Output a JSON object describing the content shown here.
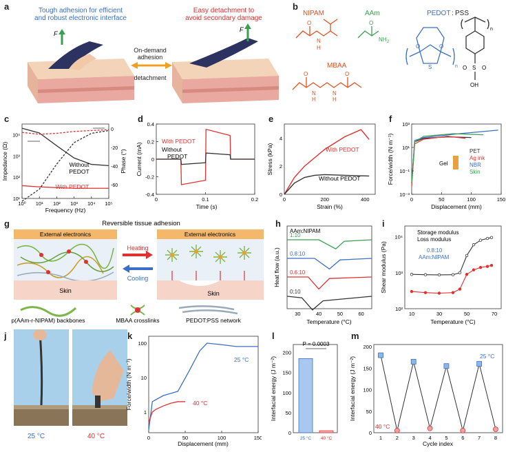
{
  "panels": {
    "a": {
      "letter": "a",
      "left_text": "Tough adhesion for efficient and robust electronic interface",
      "left_text_line1": "Tough adhesion for efficient",
      "left_text_line2": "and robust electronic interface",
      "right_text_line1": "Easy detachment to",
      "right_text_line2": "avoid secondary damage",
      "center_top_line1": "On-demand",
      "center_top_line2": "adhesion",
      "center_bottom": "detachment",
      "force_label": "F"
    },
    "b": {
      "letter": "b",
      "nipam": "NIPAM",
      "aam": "AAm",
      "pedot": "PEDOT",
      "colon": ":",
      "pss": "PSS",
      "mbaa": "MBAA",
      "atoms": {
        "N": "N",
        "H": "H",
        "O": "O",
        "S": "S",
        "NH2": "NH",
        "sub2": "2",
        "OH": "OH",
        "n": "n"
      }
    },
    "c": {
      "letter": "c",
      "ylabel": "Impedance (Ω)",
      "y2label": "Phase (°)",
      "xlabel": "Frequency (Hz)",
      "without": "Without",
      "pedot": "PEDOT",
      "with": "With PEDOT",
      "yticks": [
        "10⁴",
        "10³",
        "10²",
        "10¹"
      ],
      "y2ticks": [
        "0",
        "-20",
        "-40",
        "-60"
      ],
      "xticks": [
        "10⁰",
        "10¹",
        "10²",
        "10³",
        "10⁴",
        "10⁵"
      ]
    },
    "d": {
      "letter": "d",
      "ylabel": "Current (mA)",
      "xlabel": "Time (s)",
      "with": "With PEDOT",
      "without_line1": "Without",
      "without_line2": "PEDOT",
      "yticks": [
        "0.4",
        "0.2",
        "0",
        "-0.2",
        "-0.4"
      ],
      "xticks": [
        "0",
        "0.1",
        "0.2"
      ]
    },
    "e": {
      "letter": "e",
      "ylabel": "Stress (kPa)",
      "xlabel": "Strain (%)",
      "with": "With PEDOT",
      "without": "Without PEDOT",
      "yticks": [
        "4",
        "2",
        "0"
      ],
      "xticks": [
        "0",
        "200",
        "400"
      ]
    },
    "f": {
      "letter": "f",
      "ylabel": "Force/width (N m⁻¹)",
      "xlabel": "Displacement (mm)",
      "gel": "Gel",
      "legend": [
        "PET",
        "Ag ink",
        "NBR",
        "Skin"
      ],
      "yticks": [
        "10³",
        "10¹",
        "10⁻¹",
        "10⁻³"
      ],
      "xticks": [
        "0",
        "50",
        "100",
        "150"
      ]
    },
    "g": {
      "letter": "g",
      "title": "Reversible tissue adhesion",
      "ext1": "External electronics",
      "ext2": "External electronics",
      "heating": "Heating",
      "cooling": "Cooling",
      "skin1": "Skin",
      "skin2": "Skin",
      "legend_backbone": "p(AAm-r-NIPAM) backbones",
      "legend_mbaa": "MBAA crosslinks",
      "legend_pedot": "PEDOT:PSS network"
    },
    "h": {
      "letter": "h",
      "ylabel": "Heat flow (a.u.)",
      "xlabel": "Temperature (°C)",
      "header": "AAm:NIPAM",
      "ratios": [
        "1:10",
        "0.8:10",
        "0.6:10",
        "0:10"
      ],
      "xticks": [
        "30",
        "40",
        "50",
        "60"
      ]
    },
    "i": {
      "letter": "i",
      "ylabel": "Shear modulus (Pa)",
      "xlabel": "Temperature (°C)",
      "storage": "Storage modulus",
      "loss": "Loss modulus",
      "ratio": "0.8:10",
      "ratio_label": "AAm:NIPAM",
      "yticks": [
        "10⁴",
        "10³",
        "10²"
      ],
      "xticks": [
        "10",
        "30",
        "50",
        "70"
      ]
    },
    "j": {
      "letter": "j",
      "t1": "25 °C",
      "t2": "40 °C"
    },
    "k": {
      "letter": "k",
      "ylabel": "Force/width (N m⁻¹)",
      "xlabel": "Displacement (mm)",
      "t25": "25 °C",
      "t40": "40 °C",
      "yticks": [
        "100",
        "10",
        "1"
      ],
      "xticks": [
        "0",
        "50",
        "100",
        "150"
      ]
    },
    "l": {
      "letter": "l",
      "ylabel": "Interfacial energy (J m⁻²)",
      "pvalue": "P = 0.0003",
      "xticks": [
        "25 °C",
        "40 °C"
      ],
      "yticks": [
        "200",
        "150",
        "100",
        "50",
        "0"
      ]
    },
    "m": {
      "letter": "m",
      "ylabel": "Interfacial energy (J m⁻²)",
      "xlabel": "Cycle index",
      "t25": "25 °C",
      "t40": "40 °C",
      "yticks": [
        "200",
        "150",
        "100",
        "50",
        "0"
      ],
      "xticks": [
        "1",
        "2",
        "3",
        "4",
        "5",
        "6",
        "7",
        "8"
      ]
    }
  },
  "chart_data": [
    {
      "panel": "c",
      "type": "line",
      "title": "",
      "xlabel": "Frequency (Hz)",
      "ylabel": "Impedance (Ω)",
      "xscale": "log",
      "xlim": [
        1,
        100000
      ],
      "series": [
        {
          "name": "Impedance Without PEDOT",
          "color": "#333333",
          "x": [
            1,
            10,
            100,
            1000,
            10000,
            100000
          ],
          "values": [
            20000,
            12000,
            3000,
            800,
            400,
            350
          ]
        },
        {
          "name": "Impedance With PEDOT",
          "color": "#e03030",
          "x": [
            1,
            10,
            100,
            1000,
            10000,
            100000
          ],
          "values": [
            40,
            35,
            32,
            30,
            30,
            30
          ]
        },
        {
          "name": "Phase Without PEDOT",
          "color": "#333333",
          "dashed": true,
          "x": [
            1,
            10,
            100,
            1000,
            10000,
            100000
          ],
          "values": [
            -78,
            -65,
            -38,
            -15,
            -5,
            -2
          ]
        },
        {
          "name": "Phase With PEDOT",
          "color": "#e03030",
          "dashed": true,
          "x": [
            1,
            10,
            100,
            1000,
            10000,
            100000
          ],
          "values": [
            -4,
            -6,
            -5,
            -3,
            -2,
            -1
          ]
        }
      ]
    },
    {
      "panel": "d",
      "type": "line",
      "xlabel": "Time (s)",
      "ylabel": "Current (mA)",
      "xlim": [
        0,
        0.2
      ],
      "ylim": [
        -0.4,
        0.4
      ],
      "series": [
        {
          "name": "With PEDOT",
          "color": "#e03030",
          "x": [
            0,
            0.05,
            0.051,
            0.1,
            0.101,
            0.15,
            0.151,
            0.2
          ],
          "values": [
            0,
            0,
            -0.29,
            -0.24,
            0.34,
            0.27,
            0,
            0
          ]
        },
        {
          "name": "Without PEDOT",
          "color": "#333333",
          "x": [
            0,
            0.05,
            0.051,
            0.1,
            0.101,
            0.15,
            0.151,
            0.2
          ],
          "values": [
            0,
            0,
            -0.06,
            -0.04,
            0.07,
            0.05,
            0,
            0
          ]
        }
      ]
    },
    {
      "panel": "e",
      "type": "line",
      "xlabel": "Strain (%)",
      "ylabel": "Stress (kPa)",
      "xlim": [
        0,
        450
      ],
      "ylim": [
        0,
        5
      ],
      "series": [
        {
          "name": "With PEDOT",
          "color": "#e03030",
          "x": [
            0,
            50,
            100,
            200,
            300,
            380,
            420
          ],
          "values": [
            0,
            1.2,
            2.0,
            3.2,
            4.1,
            4.6,
            3.9
          ]
        },
        {
          "name": "Without PEDOT",
          "color": "#333333",
          "x": [
            0,
            50,
            100,
            150,
            200,
            300,
            420
          ],
          "values": [
            0,
            0.8,
            1.2,
            1.35,
            1.4,
            1.35,
            1.3
          ]
        }
      ]
    },
    {
      "panel": "f",
      "type": "line",
      "xlabel": "Displacement (mm)",
      "ylabel": "Force/width (N m⁻¹)",
      "yscale": "log",
      "xlim": [
        0,
        150
      ],
      "series": [
        {
          "name": "PET",
          "color": "#333333",
          "x": [
            0,
            5,
            20,
            60,
            100
          ],
          "values": [
            0.01,
            30,
            60,
            80,
            70
          ]
        },
        {
          "name": "Ag ink",
          "color": "#e03030",
          "x": [
            0,
            5,
            20,
            60,
            90
          ],
          "values": [
            0.005,
            20,
            50,
            90,
            60
          ]
        },
        {
          "name": "NBR",
          "color": "#3a6fc8",
          "x": [
            0,
            5,
            20,
            80,
            145
          ],
          "values": [
            0.01,
            40,
            70,
            150,
            300
          ]
        },
        {
          "name": "Skin",
          "color": "#3aa050",
          "x": [
            0,
            5,
            20,
            70,
            120
          ],
          "values": [
            0.01,
            30,
            90,
            150,
            120
          ]
        }
      ]
    },
    {
      "panel": "h",
      "type": "line",
      "xlabel": "Temperature (°C)",
      "ylabel": "Heat flow (a.u.)",
      "xlim": [
        25,
        65
      ],
      "series": [
        {
          "name": "1:10",
          "color": "#3aa050",
          "x": [
            25,
            40,
            48,
            52,
            65
          ],
          "values": [
            0,
            0,
            -0.6,
            -0.1,
            0
          ]
        },
        {
          "name": "0.8:10",
          "color": "#3a6fc8",
          "x": [
            25,
            38,
            45,
            50,
            65
          ],
          "values": [
            0,
            0,
            -0.7,
            -0.1,
            0
          ]
        },
        {
          "name": "0.6:10",
          "color": "#e03030",
          "x": [
            25,
            35,
            40,
            45,
            65
          ],
          "values": [
            0,
            0,
            -0.8,
            -0.1,
            0
          ]
        },
        {
          "name": "0:10",
          "color": "#333333",
          "x": [
            25,
            32,
            37,
            42,
            65
          ],
          "values": [
            0,
            -0.1,
            -0.9,
            -0.3,
            0
          ]
        }
      ]
    },
    {
      "panel": "i",
      "type": "line",
      "xlabel": "Temperature (°C)",
      "ylabel": "Shear modulus (Pa)",
      "yscale": "log",
      "xlim": [
        10,
        70
      ],
      "series": [
        {
          "name": "Storage modulus",
          "color": "#333333",
          "x": [
            10,
            20,
            30,
            40,
            45,
            50,
            55,
            60,
            65,
            68
          ],
          "values": [
            900,
            880,
            870,
            880,
            1000,
            3000,
            6000,
            8000,
            9000,
            9500
          ]
        },
        {
          "name": "Loss modulus",
          "color": "#e03030",
          "x": [
            10,
            20,
            30,
            40,
            45,
            50,
            55,
            60,
            65,
            68
          ],
          "values": [
            300,
            280,
            270,
            280,
            350,
            900,
            1200,
            1400,
            1500,
            1600
          ]
        }
      ]
    },
    {
      "panel": "k",
      "type": "line",
      "xlabel": "Displacement (mm)",
      "ylabel": "Force/width (N m⁻¹)",
      "yscale": "log",
      "xlim": [
        0,
        150
      ],
      "series": [
        {
          "name": "25 °C",
          "color": "#3a6fc8",
          "x": [
            0,
            5,
            20,
            40,
            55,
            70,
            80,
            100,
            120,
            150
          ],
          "values": [
            0.3,
            2,
            3,
            4,
            15,
            60,
            100,
            90,
            80,
            80
          ]
        },
        {
          "name": "40 °C",
          "color": "#e03030",
          "x": [
            0,
            5,
            10,
            20,
            30,
            40,
            50
          ],
          "values": [
            0.5,
            1,
            1.2,
            1.5,
            1.8,
            2,
            2
          ]
        }
      ]
    },
    {
      "panel": "l",
      "type": "bar",
      "ylabel": "Interfacial energy (J m⁻²)",
      "categories": [
        "25 °C",
        "40 °C"
      ],
      "values": [
        185,
        5
      ],
      "ylim": [
        0,
        220
      ],
      "annotation": "P = 0.0003"
    },
    {
      "panel": "m",
      "type": "line",
      "xlabel": "Cycle index",
      "ylabel": "Interfacial energy (J m⁻²)",
      "x": [
        1,
        2,
        3,
        4,
        5,
        6,
        7,
        8
      ],
      "values": [
        180,
        5,
        165,
        10,
        155,
        5,
        160,
        8
      ],
      "ylim": [
        0,
        200
      ]
    }
  ]
}
